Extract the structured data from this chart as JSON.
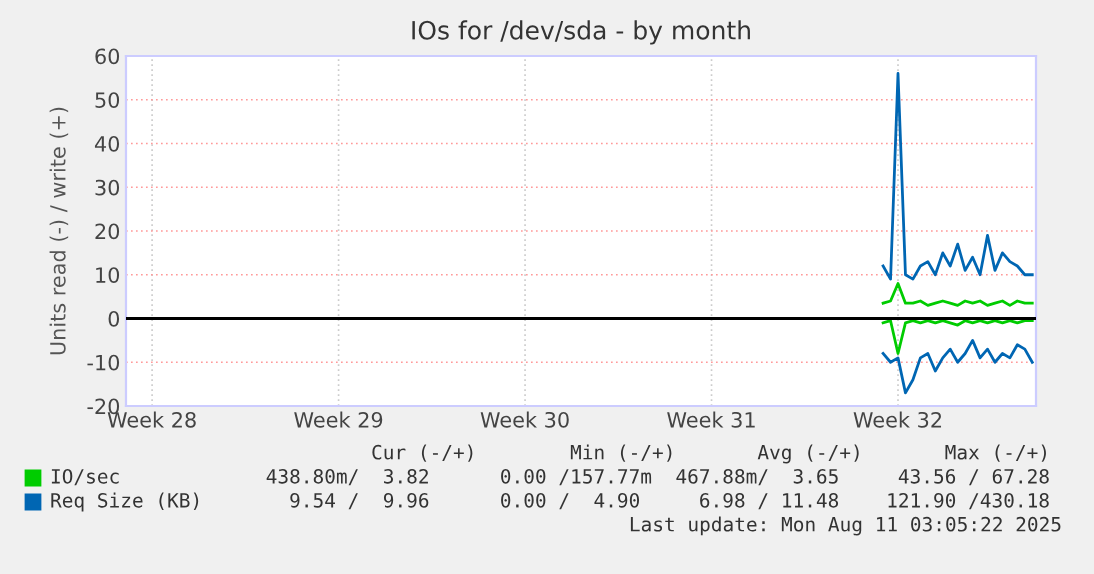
{
  "chart_data": {
    "type": "line",
    "title": "IOs for /dev/sda - by month",
    "ylabel": "Units read (-) / write (+)",
    "categories": [
      null,
      null,
      null,
      "Week 28",
      null,
      null,
      null,
      null,
      null,
      null,
      null,
      null,
      null,
      null,
      null,
      null,
      null,
      null,
      null,
      null,
      null,
      null,
      null,
      null,
      null,
      null,
      null,
      null,
      "Week 29",
      null,
      null,
      null,
      null,
      null,
      null,
      null,
      null,
      null,
      null,
      null,
      null,
      null,
      null,
      null,
      null,
      null,
      null,
      null,
      null,
      null,
      null,
      null,
      null,
      "Week 30",
      null,
      null,
      null,
      null,
      null,
      null,
      null,
      null,
      null,
      null,
      null,
      null,
      null,
      null,
      null,
      null,
      null,
      null,
      null,
      null,
      null,
      null,
      null,
      null,
      "Week 31",
      null,
      null,
      null,
      null,
      null,
      null,
      null,
      null,
      null,
      null,
      null,
      null,
      null,
      null,
      null,
      null,
      null,
      null,
      null,
      null,
      null,
      null,
      null,
      null,
      "Week 32",
      null,
      null,
      null,
      null,
      null,
      null,
      null,
      null,
      null,
      null,
      null,
      null,
      null,
      null,
      null,
      null,
      null,
      null
    ],
    "ylim": [
      -20,
      60
    ],
    "yticks": [
      -20,
      -10,
      0,
      10,
      20,
      30,
      40,
      50,
      60
    ],
    "grid": true,
    "legend": "bottom",
    "ref_lines": [
      {
        "axis": "y",
        "value": 0,
        "color": "#000000"
      }
    ],
    "series": [
      {
        "name": "IO/sec",
        "color": "#00cc00",
        "values": [
          null,
          null,
          null,
          null,
          null,
          null,
          null,
          null,
          null,
          null,
          null,
          null,
          null,
          null,
          null,
          null,
          null,
          null,
          null,
          null,
          null,
          null,
          null,
          null,
          null,
          null,
          null,
          null,
          null,
          null,
          null,
          null,
          null,
          null,
          null,
          null,
          null,
          null,
          null,
          null,
          null,
          null,
          null,
          null,
          null,
          null,
          null,
          null,
          null,
          null,
          null,
          null,
          null,
          null,
          null,
          null,
          null,
          null,
          null,
          null,
          null,
          null,
          null,
          null,
          null,
          null,
          null,
          null,
          null,
          null,
          null,
          null,
          null,
          null,
          null,
          null,
          null,
          null,
          null,
          null,
          null,
          null,
          null,
          null,
          null,
          null,
          null,
          null,
          null,
          null,
          null,
          null,
          null,
          null,
          null,
          null,
          null,
          null,
          null,
          null,
          null,
          3.5,
          4,
          8,
          3.5,
          3.5,
          4,
          3,
          3.5,
          4,
          3.5,
          3,
          4,
          3.5,
          4,
          3,
          3.5,
          4,
          3,
          4,
          3.5,
          3.5
        ]
      },
      {
        "name": "Req Size (KB)",
        "color": "#0066b3",
        "values": [
          null,
          null,
          null,
          null,
          null,
          null,
          null,
          null,
          null,
          null,
          null,
          null,
          null,
          null,
          null,
          null,
          null,
          null,
          null,
          null,
          null,
          null,
          null,
          null,
          null,
          null,
          null,
          null,
          null,
          null,
          null,
          null,
          null,
          null,
          null,
          null,
          null,
          null,
          null,
          null,
          null,
          null,
          null,
          null,
          null,
          null,
          null,
          null,
          null,
          null,
          null,
          null,
          null,
          null,
          null,
          null,
          null,
          null,
          null,
          null,
          null,
          null,
          null,
          null,
          null,
          null,
          null,
          null,
          null,
          null,
          null,
          null,
          null,
          null,
          null,
          null,
          null,
          null,
          null,
          null,
          null,
          null,
          null,
          null,
          null,
          null,
          null,
          null,
          null,
          null,
          null,
          null,
          null,
          null,
          null,
          null,
          null,
          null,
          null,
          null,
          null,
          12,
          9,
          56,
          10,
          9,
          12,
          13,
          10,
          15,
          12,
          17,
          11,
          14,
          10,
          19,
          11,
          15,
          13,
          12,
          10,
          10
        ]
      },
      {
        "color": "#00cc00",
        "values": [
          null,
          null,
          null,
          null,
          null,
          null,
          null,
          null,
          null,
          null,
          null,
          null,
          null,
          null,
          null,
          null,
          null,
          null,
          null,
          null,
          null,
          null,
          null,
          null,
          null,
          null,
          null,
          null,
          null,
          null,
          null,
          null,
          null,
          null,
          null,
          null,
          null,
          null,
          null,
          null,
          null,
          null,
          null,
          null,
          null,
          null,
          null,
          null,
          null,
          null,
          null,
          null,
          null,
          null,
          null,
          null,
          null,
          null,
          null,
          null,
          null,
          null,
          null,
          null,
          null,
          null,
          null,
          null,
          null,
          null,
          null,
          null,
          null,
          null,
          null,
          null,
          null,
          null,
          null,
          null,
          null,
          null,
          null,
          null,
          null,
          null,
          null,
          null,
          null,
          null,
          null,
          null,
          null,
          null,
          null,
          null,
          null,
          null,
          null,
          null,
          null,
          -1,
          -0.5,
          -8,
          -1,
          -0.5,
          -1,
          -0.5,
          -1,
          -0.5,
          -1,
          -1.5,
          -0.5,
          -1,
          -0.5,
          -1,
          -0.5,
          -1,
          -0.5,
          -1,
          -0.5,
          -0.5
        ]
      },
      {
        "color": "#0066b3",
        "values": [
          null,
          null,
          null,
          null,
          null,
          null,
          null,
          null,
          null,
          null,
          null,
          null,
          null,
          null,
          null,
          null,
          null,
          null,
          null,
          null,
          null,
          null,
          null,
          null,
          null,
          null,
          null,
          null,
          null,
          null,
          null,
          null,
          null,
          null,
          null,
          null,
          null,
          null,
          null,
          null,
          null,
          null,
          null,
          null,
          null,
          null,
          null,
          null,
          null,
          null,
          null,
          null,
          null,
          null,
          null,
          null,
          null,
          null,
          null,
          null,
          null,
          null,
          null,
          null,
          null,
          null,
          null,
          null,
          null,
          null,
          null,
          null,
          null,
          null,
          null,
          null,
          null,
          null,
          null,
          null,
          null,
          null,
          null,
          null,
          null,
          null,
          null,
          null,
          null,
          null,
          null,
          null,
          null,
          null,
          null,
          null,
          null,
          null,
          null,
          null,
          null,
          -8,
          -10,
          -9,
          -17,
          -14,
          -9,
          -8,
          -12,
          -9,
          -7,
          -10,
          -8,
          -5,
          -9,
          -7,
          -10,
          -8,
          -9,
          -6,
          -7,
          -10
        ]
      }
    ],
    "annotations": [
      "     Cur (-/+)        Min (-/+)       Avg (-/+)       Max (-/+)",
      "438.80m/  3.82      0.00 /157.77m  467.88m/  3.65     43.56 / 67.28",
      "  9.54 /  9.96      0.00 /  4.90     6.98 / 11.48    121.90 /430.18",
      "Last update: Mon Aug 11 03:05:22 2025"
    ]
  }
}
